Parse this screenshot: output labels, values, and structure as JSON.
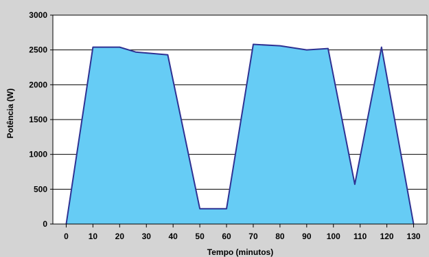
{
  "chart_data": {
    "type": "area",
    "title": "",
    "xlabel": "Tempo (minutos)",
    "ylabel": "Potência (W)",
    "x": [
      0,
      10,
      20,
      30,
      40,
      50,
      60,
      70,
      80,
      90,
      100,
      110,
      120,
      130
    ],
    "series": [
      {
        "name": "",
        "x": [
          0,
          10,
          20,
          26,
          38,
          50,
          60,
          70,
          80,
          90,
          98,
          108,
          118,
          130
        ],
        "values": [
          0,
          2540,
          2540,
          2470,
          2430,
          220,
          220,
          2580,
          2560,
          2500,
          2520,
          570,
          2540,
          0
        ]
      }
    ],
    "xlim": [
      -5,
      135
    ],
    "ylim": [
      0,
      3000
    ],
    "yticks": [
      0,
      500,
      1000,
      1500,
      2000,
      2500,
      3000
    ],
    "xticks": [
      0,
      10,
      20,
      30,
      40,
      50,
      60,
      70,
      80,
      90,
      100,
      110,
      120,
      130
    ],
    "grid": true,
    "legend": "none",
    "colors": {
      "background": "#d4d4d4",
      "plot_background": "#ffffff",
      "fill": "#66ccf5",
      "line": "#2e3192",
      "grid": "#000000"
    }
  }
}
